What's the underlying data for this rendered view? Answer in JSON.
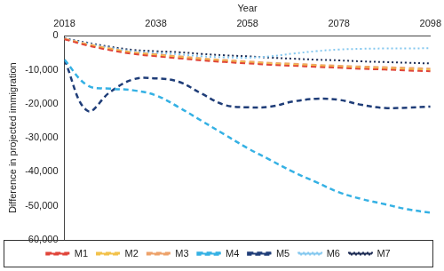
{
  "chart_data": {
    "type": "line",
    "x_label": "Year",
    "y_label": "Difference in projected immigration",
    "x": [
      2018,
      2023,
      2028,
      2033,
      2038,
      2043,
      2048,
      2053,
      2058,
      2063,
      2068,
      2073,
      2078,
      2083,
      2088,
      2093,
      2098
    ],
    "xlim": [
      2018,
      2098
    ],
    "xticks": [
      2018,
      2038,
      2058,
      2078,
      2098
    ],
    "ylim": [
      -60000,
      0
    ],
    "yticks": [
      {
        "value": -60000,
        "label": "-60,000"
      },
      {
        "value": -50000,
        "label": "-50,000"
      },
      {
        "value": -40000,
        "label": "-40,000"
      },
      {
        "value": -30000,
        "label": "-30,000"
      },
      {
        "value": -20000,
        "label": "-20,000"
      },
      {
        "value": -10000,
        "label": "-10,000"
      },
      0
    ],
    "grid": false,
    "legend": "bottom",
    "series": [
      {
        "name": "M1",
        "color": "#e0453a",
        "line_style": "dashed",
        "values": [
          -1000,
          -2800,
          -4200,
          -5300,
          -6000,
          -6600,
          -7200,
          -7700,
          -8100,
          -8500,
          -8800,
          -9100,
          -9400,
          -9700,
          -9900,
          -10200,
          -10400
        ]
      },
      {
        "name": "M2",
        "color": "#f2c14a",
        "line_style": "dashed",
        "values": [
          -900,
          -2600,
          -3900,
          -5000,
          -5700,
          -6300,
          -6900,
          -7400,
          -7800,
          -8200,
          -8500,
          -8800,
          -9100,
          -9400,
          -9600,
          -9800,
          -10000
        ]
      },
      {
        "name": "M3",
        "color": "#eda26a",
        "line_style": "dashed",
        "values": [
          -800,
          -2400,
          -3700,
          -4800,
          -5400,
          -6000,
          -6600,
          -7100,
          -7500,
          -7900,
          -8200,
          -8500,
          -8800,
          -9000,
          -9200,
          -9400,
          -9600
        ]
      },
      {
        "name": "M4",
        "color": "#35b1e4",
        "line_style": "dashed",
        "values": [
          -7000,
          -14500,
          -15500,
          -16000,
          -17500,
          -21000,
          -25000,
          -29000,
          -33000,
          -36500,
          -40000,
          -43000,
          -46000,
          -48000,
          -49500,
          -51000,
          -52000
        ]
      },
      {
        "name": "M5",
        "color": "#1f3d78",
        "line_style": "dashed",
        "values": [
          -7000,
          -22000,
          -16500,
          -12800,
          -12500,
          -13500,
          -17000,
          -20300,
          -21000,
          -20800,
          -19300,
          -18500,
          -18800,
          -20300,
          -21200,
          -21100,
          -20800
        ]
      },
      {
        "name": "M6",
        "color": "#85c8ef",
        "line_style": "dotted",
        "values": [
          -800,
          -2200,
          -3500,
          -4500,
          -5000,
          -5400,
          -6000,
          -6300,
          -6400,
          -6000,
          -5200,
          -4500,
          -4000,
          -3800,
          -3700,
          -3700,
          -3600
        ]
      },
      {
        "name": "M7",
        "color": "#1e2d55",
        "line_style": "dotted",
        "values": [
          -700,
          -2000,
          -3200,
          -4100,
          -4500,
          -4800,
          -5300,
          -5700,
          -6000,
          -6400,
          -6700,
          -7000,
          -7200,
          -7500,
          -7700,
          -7900,
          -8100
        ]
      }
    ]
  }
}
